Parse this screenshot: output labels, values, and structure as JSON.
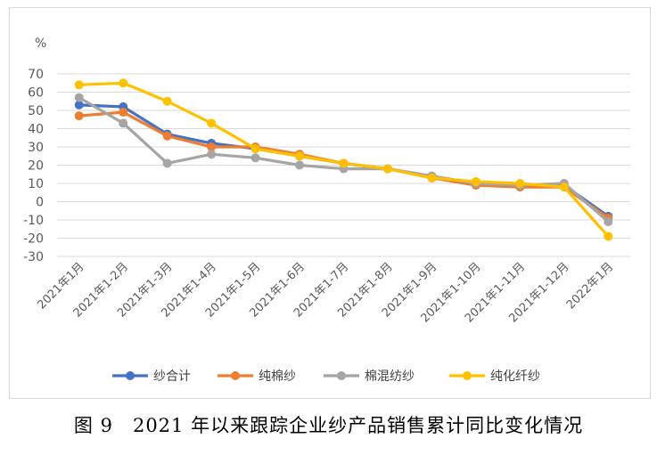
{
  "chart_data": {
    "type": "line",
    "ylabel": "%",
    "ylim": [
      -30,
      70
    ],
    "yticks": [
      70,
      60,
      50,
      40,
      30,
      20,
      10,
      0,
      -10,
      -20,
      -30
    ],
    "grid": true,
    "legend_position": "bottom",
    "categories": [
      "2021年1月",
      "2021年1-2月",
      "2021年1-3月",
      "2021年1-4月",
      "2021年1-5月",
      "2021年1-6月",
      "2021年1-7月",
      "2021年1-8月",
      "2021年1-9月",
      "2021年1-10月",
      "2021年1-11月",
      "2021年1-12月",
      "2022年1月"
    ],
    "series": [
      {
        "name": "纱合计",
        "color": "#4472C4",
        "values": [
          53,
          52,
          37,
          32,
          29,
          25,
          21,
          18,
          14,
          10,
          9,
          9,
          -8
        ]
      },
      {
        "name": "纯棉纱",
        "color": "#ED7D31",
        "values": [
          47,
          49,
          36,
          30,
          30,
          26,
          21,
          18,
          13,
          9,
          8,
          8,
          -9
        ]
      },
      {
        "name": "棉混纺纱",
        "color": "#A5A5A5",
        "values": [
          57,
          43,
          21,
          26,
          24,
          20,
          18,
          18,
          14,
          10,
          9,
          10,
          -11
        ]
      },
      {
        "name": "纯化纤纱",
        "color": "#FFC000",
        "values": [
          64,
          65,
          55,
          43,
          29,
          25,
          21,
          18,
          13,
          11,
          10,
          8,
          -19
        ]
      }
    ]
  },
  "caption": "图 9　2021 年以来跟踪企业纱产品销售累计同比变化情况"
}
